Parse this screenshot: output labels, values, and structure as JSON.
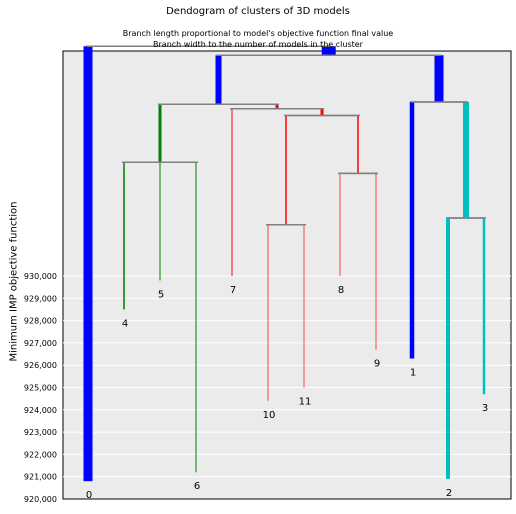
{
  "chart_data": {
    "type": "dendrogram",
    "title": "Dendogram of clusters of 3D models",
    "subtitle_lines": [
      "Branch length proportional to model's objective function final value",
      "Branch width to the number of models in the cluster"
    ],
    "xlabel": "",
    "ylabel": "Minimum IMP objective function",
    "ylim": [
      920000,
      930000
    ],
    "y_ticks": [
      920000,
      921000,
      922000,
      923000,
      924000,
      925000,
      926000,
      927000,
      928000,
      929000,
      930000
    ],
    "y_tick_labels": [
      "920,000",
      "921,000",
      "922,000",
      "923,000",
      "924,000",
      "925,000",
      "926,000",
      "927,000",
      "928,000",
      "929,000",
      "930,000"
    ],
    "grid": true,
    "background": "#ebebeb",
    "link_color": "#808080",
    "leaves": [
      {
        "label": "0",
        "value": 920800,
        "width": 9,
        "color": "#0000ff"
      },
      {
        "label": "4",
        "value": 928500,
        "width": 1.5,
        "color": "#008000"
      },
      {
        "label": "5",
        "value": 929800,
        "width": 1,
        "color": "#008000"
      },
      {
        "label": "6",
        "value": 921200,
        "width": 1,
        "color": "#008000"
      },
      {
        "label": "7",
        "value": 930000,
        "width": 1,
        "color": "#ff0000"
      },
      {
        "label": "10",
        "value": 924400,
        "width": 0.7,
        "color": "#ff0000"
      },
      {
        "label": "11",
        "value": 925000,
        "width": 0.7,
        "color": "#ff0000"
      },
      {
        "label": "8",
        "value": 930000,
        "width": 0.7,
        "color": "#ff0000"
      },
      {
        "label": "9",
        "value": 926700,
        "width": 0.7,
        "color": "#ff0000"
      },
      {
        "label": "1",
        "value": 926300,
        "width": 4.5,
        "color": "#0000ff"
      },
      {
        "label": "2",
        "value": 920900,
        "width": 4,
        "color": "#00bfbf"
      },
      {
        "label": "3",
        "value": 924700,
        "width": 2.5,
        "color": "#00bfbf"
      }
    ],
    "merges": [
      {
        "id": "m0",
        "children": [
          "4",
          "5",
          "6"
        ],
        "value": 935100,
        "color": "#008000",
        "width": 3
      },
      {
        "id": "m1",
        "children": [
          "10",
          "11"
        ],
        "value": 932300,
        "color": "#ff0000",
        "width": 1.5
      },
      {
        "id": "m2",
        "children": [
          "8",
          "9"
        ],
        "value": 934600,
        "color": "#ff0000",
        "width": 1.5
      },
      {
        "id": "m3",
        "children": [
          "m1",
          "m2"
        ],
        "value": 937200,
        "color": "#ff0000",
        "width": 3
      },
      {
        "id": "m4",
        "children": [
          "7",
          "m3"
        ],
        "value": 937500,
        "color": "#ff0000",
        "width": 3
      },
      {
        "id": "m5",
        "children": [
          "m0",
          "m4"
        ],
        "value": 937700,
        "color": "#0000ff",
        "width": 6
      },
      {
        "id": "m6",
        "children": [
          "2",
          "3"
        ],
        "value": 932600,
        "color": "#00bfbf",
        "width": 6
      },
      {
        "id": "m7",
        "children": [
          "1",
          "m6"
        ],
        "value": 937800,
        "color": "#0000ff",
        "width": 9
      },
      {
        "id": "m8",
        "children": [
          "m5",
          "m7"
        ],
        "value": 939900,
        "color": "#0000ff",
        "width": 14
      },
      {
        "id": "m9",
        "children": [
          "0",
          "m8"
        ],
        "value": 940300,
        "color": "#0000ff",
        "width": 18
      }
    ]
  }
}
